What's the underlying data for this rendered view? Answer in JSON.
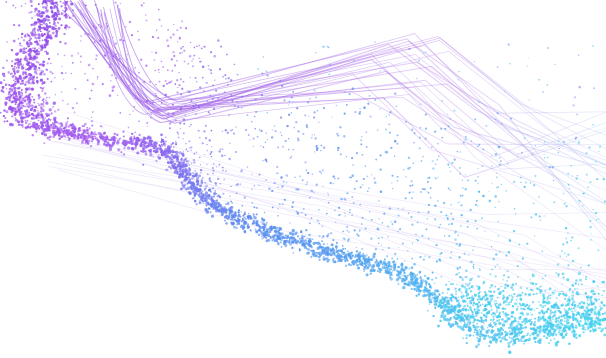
{
  "artwork": {
    "subject": "abstract-particle-wave",
    "colors": {
      "background": "#ffffff",
      "violet": "#8c46e6",
      "purple": "#a45cf0",
      "blue": "#5a8cf0",
      "cyan": "#43d6ee",
      "line": "#b070e6"
    }
  }
}
